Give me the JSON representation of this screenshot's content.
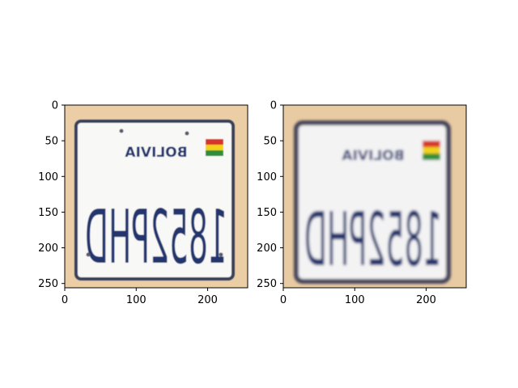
{
  "chart_data": [
    {
      "type": "image",
      "image_size": [
        256,
        256
      ],
      "xlim": [
        0,
        256
      ],
      "ylim": [
        256,
        0
      ],
      "x_ticks": [
        0,
        100,
        200
      ],
      "y_ticks": [
        0,
        50,
        100,
        150,
        200,
        250
      ],
      "grid": false,
      "content": {
        "plate_country": "BOLIVIA",
        "plate_number": "1852PHD",
        "mirrored": true,
        "variant": "sharp"
      }
    },
    {
      "type": "image",
      "image_size": [
        256,
        256
      ],
      "xlim": [
        0,
        256
      ],
      "ylim": [
        256,
        0
      ],
      "x_ticks": [
        0,
        100,
        200
      ],
      "y_ticks": [
        0,
        50,
        100,
        150,
        200,
        250
      ],
      "grid": false,
      "content": {
        "plate_country": "BOLIVIA",
        "plate_number": "1852PHD",
        "mirrored": true,
        "variant": "blurred"
      }
    }
  ],
  "colors": {
    "background": "#e7c79e",
    "plate": "#f7f7f5",
    "plate_border": "#3b3f58",
    "text": "#23346e",
    "flag_red": "#d8352a",
    "flag_yellow": "#f2d21b",
    "flag_green": "#2f8f3a"
  }
}
